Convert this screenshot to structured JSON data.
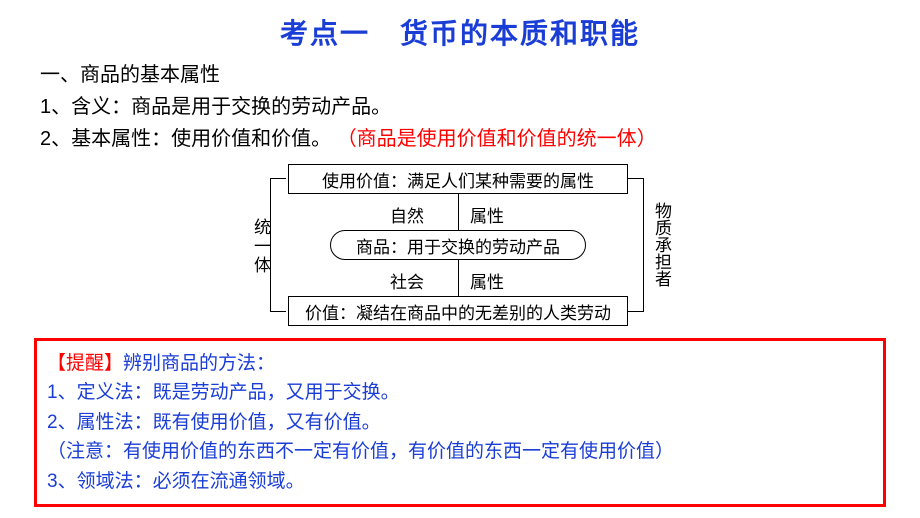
{
  "title": "考点一　货币的本质和职能",
  "section": {
    "heading": "一、商品的基本属性",
    "line1": "1、含义：商品是用于交换的劳动产品。",
    "line2_prefix": "2、基本属性：使用价值和价值。",
    "line2_red": "（商品是使用价值和价值的统一体）"
  },
  "diagram": {
    "box_top": "使用价值：满足人们某种需要的属性",
    "box_mid": "商品：用于交换的劳动产品",
    "box_bot": "价值：凝结在商品中的无差别的人类劳动",
    "ziran": "自然",
    "shuxing1": "属性",
    "shehui": "社会",
    "shuxing2": "属性",
    "left_label": "统一体",
    "right_label": "物质承担者",
    "colors": {
      "border": "#000000",
      "text": "#000000"
    },
    "fontsize": 17
  },
  "reminder": {
    "title": "【提醒】",
    "title_rest": "辨别商品的方法：",
    "line1": "1、定义法：既是劳动产品，又用于交换。",
    "line2": "2、属性法：既有使用价值，又有价值。",
    "line3": "（注意：有使用价值的东西不一定有价值，有价值的东西一定有使用价值）",
    "line4": "3、领域法：必须在流通领域。"
  },
  "colors": {
    "title": "#1a3dd6",
    "red": "#ff0000",
    "blue": "#1a3dd6",
    "border_box": "#ff0000",
    "text": "#000000",
    "background": "#ffffff"
  }
}
